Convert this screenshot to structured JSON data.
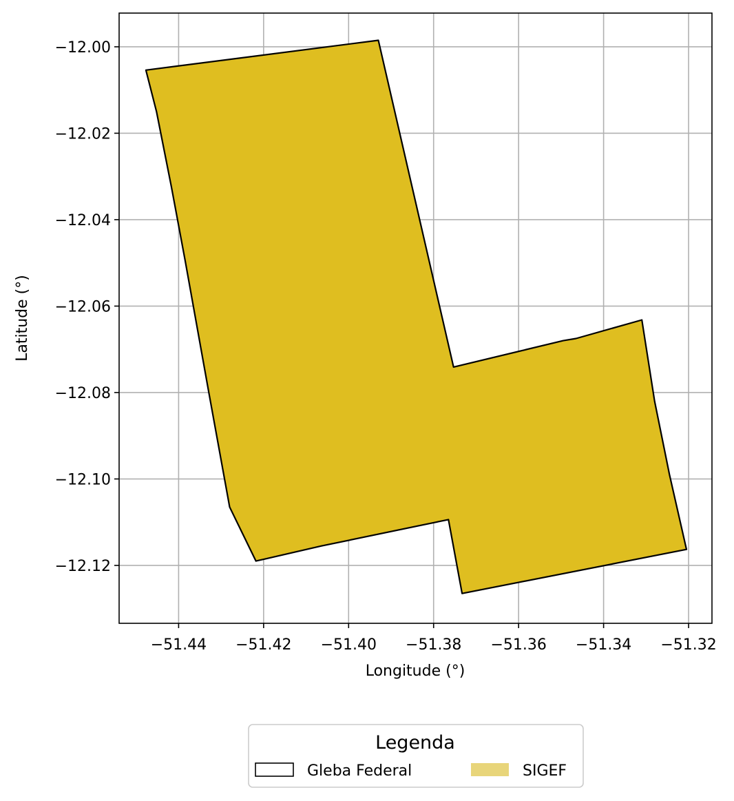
{
  "chart_data": {
    "type": "map",
    "xlabel": "Longitude (°)",
    "ylabel": "Latitude (°)",
    "xlim": [
      -51.454,
      -51.3145
    ],
    "ylim": [
      -12.1334,
      -11.9922
    ],
    "grid": true,
    "x_ticks": [
      -51.44,
      -51.42,
      -51.4,
      -51.38,
      -51.36,
      -51.34,
      -51.32
    ],
    "y_ticks": [
      -12.0,
      -12.02,
      -12.04,
      -12.06,
      -12.08,
      -12.1,
      -12.12
    ],
    "x_tick_labels": [
      "−51.44",
      "−51.42",
      "−51.40",
      "−51.38",
      "−51.36",
      "−51.34",
      "−51.32"
    ],
    "y_tick_labels": [
      "−12.00",
      "−12.02",
      "−12.04",
      "−12.06",
      "−12.08",
      "−12.10",
      "−12.12"
    ],
    "legend": {
      "title": "Legenda",
      "placement": "bottom-center",
      "entries": [
        {
          "label": "Gleba Federal",
          "style": "outline",
          "color": "#000000"
        },
        {
          "label": "SIGEF",
          "style": "fill",
          "color": "#e8d57a"
        }
      ]
    },
    "layers": [
      {
        "name": "SIGEF",
        "fill": "#dfbe20",
        "coordinates": [
          [
            -51.4477,
            -12.0054
          ],
          [
            -51.4452,
            -12.015
          ],
          [
            -51.4417,
            -12.0324
          ],
          [
            -51.4385,
            -12.0493
          ],
          [
            -51.433,
            -12.0794
          ],
          [
            -51.428,
            -12.1065
          ],
          [
            -51.4218,
            -12.119
          ],
          [
            -51.4064,
            -12.1155
          ],
          [
            -51.3765,
            -12.1094
          ],
          [
            -51.3733,
            -12.1265
          ],
          [
            -51.3205,
            -12.1163
          ],
          [
            -51.3245,
            -12.099
          ],
          [
            -51.328,
            -12.082
          ],
          [
            -51.331,
            -12.0632
          ],
          [
            -51.3465,
            -12.0675
          ],
          [
            -51.3495,
            -12.068
          ],
          [
            -51.3753,
            -12.0741
          ],
          [
            -51.393,
            -11.9985
          ]
        ]
      },
      {
        "name": "Gleba Federal",
        "stroke": "#000000",
        "coordinates": [
          [
            -51.4477,
            -12.0054
          ],
          [
            -51.4452,
            -12.015
          ],
          [
            -51.4417,
            -12.0324
          ],
          [
            -51.4385,
            -12.0493
          ],
          [
            -51.433,
            -12.0794
          ],
          [
            -51.428,
            -12.1065
          ],
          [
            -51.4218,
            -12.119
          ],
          [
            -51.4064,
            -12.1155
          ],
          [
            -51.3765,
            -12.1094
          ],
          [
            -51.3733,
            -12.1265
          ],
          [
            -51.3205,
            -12.1163
          ],
          [
            -51.3245,
            -12.099
          ],
          [
            -51.328,
            -12.082
          ],
          [
            -51.331,
            -12.0632
          ],
          [
            -51.3465,
            -12.0675
          ],
          [
            -51.3495,
            -12.068
          ],
          [
            -51.3753,
            -12.0741
          ],
          [
            -51.393,
            -11.9985
          ]
        ]
      }
    ]
  }
}
